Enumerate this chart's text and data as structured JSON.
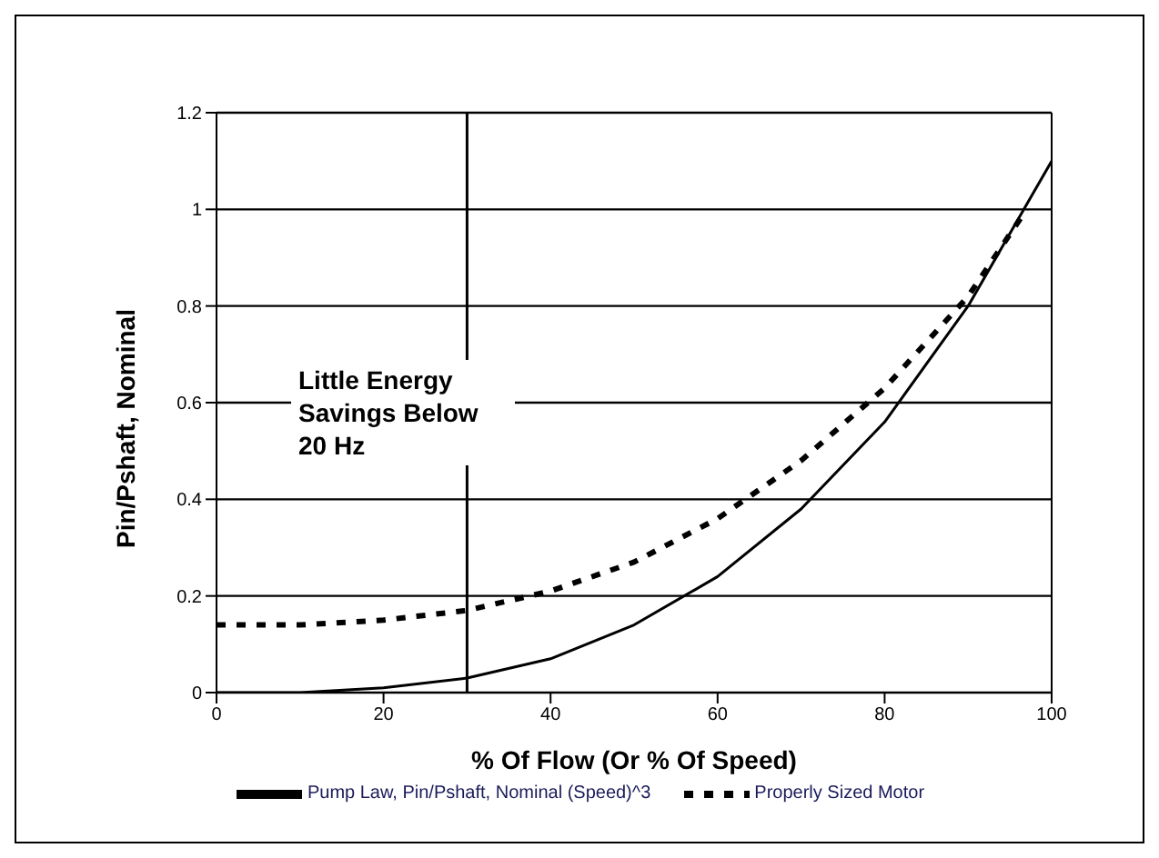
{
  "chart_data": {
    "type": "line",
    "xlabel": "% Of Flow (Or % Of Speed)",
    "ylabel": "Pin/Pshaft, Nominal",
    "x": [
      0,
      10,
      20,
      30,
      40,
      50,
      60,
      70,
      80,
      90,
      100
    ],
    "series": [
      {
        "name": "Pump Law, Pin/Pshaft, Nominal (Speed)^3",
        "color": "#000000",
        "line_style": "solid",
        "values": [
          0,
          0,
          0.01,
          0.03,
          0.07,
          0.14,
          0.24,
          0.38,
          0.56,
          0.8,
          1.1
        ]
      },
      {
        "name": "Properly Sized Motor",
        "color": "#000000",
        "line_style": "dashed",
        "x": [
          0,
          10,
          20,
          30,
          40,
          50,
          60,
          70,
          80,
          90,
          97
        ],
        "values": [
          0.14,
          0.14,
          0.15,
          0.17,
          0.21,
          0.27,
          0.36,
          0.48,
          0.63,
          0.82,
          1.0
        ]
      }
    ],
    "xlim": [
      0,
      100
    ],
    "xticks": [
      0,
      20,
      40,
      60,
      80,
      100
    ],
    "ylim": [
      0,
      1.2
    ],
    "yticks": [
      0,
      0.2,
      0.4,
      0.6,
      0.8,
      1,
      1.2
    ],
    "grid": "y",
    "legend": "bottom",
    "marker": "none",
    "ref_lines": [
      {
        "axis": "x",
        "value": 30,
        "color": "#000000"
      }
    ],
    "annotations": [
      {
        "text": "Little Energy Savings Below 20 Hz",
        "x": 30,
        "y": 0.6
      }
    ]
  }
}
